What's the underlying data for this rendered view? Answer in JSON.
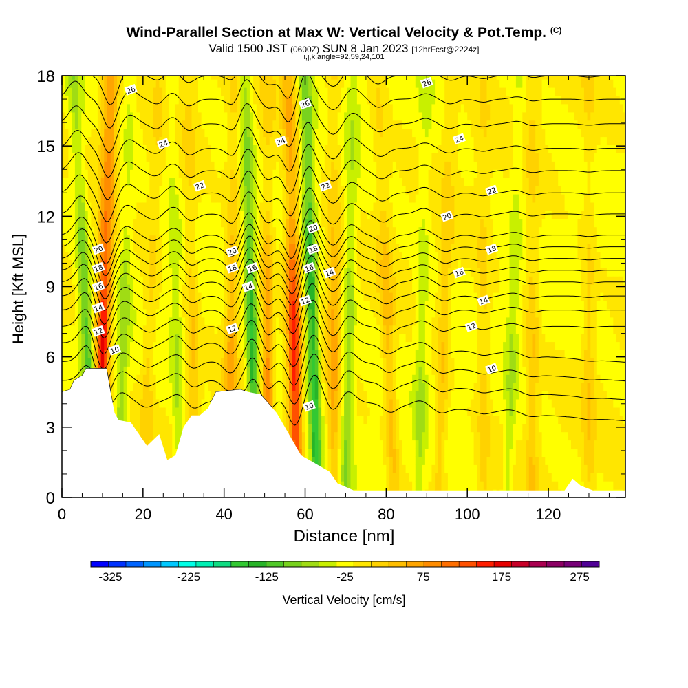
{
  "title": {
    "main": "Wind-Parallel Section at Max W: Vertical Velocity & Pot.Temp.",
    "copyright": "(C)",
    "valid_prefix": "Valid 1500 JST",
    "valid_utc": "(0600Z)",
    "valid_date": "SUN 8 Jan 2023",
    "forecast": "[12hrFcst@2224z]",
    "indices": "i,j,k,angle=92,59,24,101"
  },
  "chart_data": {
    "type": "heatmap",
    "xlabel": "Distance [nm]",
    "ylabel": "Height [Kft MSL]",
    "xlim": [
      0,
      139
    ],
    "ylim": [
      0,
      18
    ],
    "x_ticks": [
      0,
      20,
      40,
      60,
      80,
      100,
      120
    ],
    "y_ticks": [
      0,
      3,
      6,
      9,
      12,
      15,
      18
    ],
    "field": "Vertical Velocity",
    "colorbar": {
      "label": "Vertical Velocity [cm/s]",
      "range": [
        -350,
        300
      ],
      "tick_values": [
        -325,
        -225,
        -125,
        -25,
        75,
        175,
        275
      ],
      "tick_labels": [
        "-325",
        "-225",
        "-125",
        "-25",
        "75",
        "175",
        "275"
      ],
      "colors": [
        "#0000ff",
        "#0032ff",
        "#0064ff",
        "#0096ff",
        "#00c8ff",
        "#00ffe6",
        "#00f0b4",
        "#10dc82",
        "#32c832",
        "#28b428",
        "#50c828",
        "#78d21e",
        "#a0dc14",
        "#c8f000",
        "#ffff00",
        "#ffe600",
        "#ffd200",
        "#ffbe00",
        "#ffa500",
        "#ff8c00",
        "#ff6e00",
        "#ff5000",
        "#ff1e00",
        "#e60000",
        "#c80028",
        "#aa0050",
        "#8c0064",
        "#780078",
        "#500096"
      ]
    },
    "updraft_bands": [
      {
        "x_bottom": 9,
        "x_top": 12,
        "value": 200
      },
      {
        "x_bottom": 20,
        "x_top": 24,
        "value": 40
      },
      {
        "x_bottom": 33,
        "x_top": 31,
        "value": 50
      },
      {
        "x_bottom": 41,
        "x_top": 43,
        "value": 80
      },
      {
        "x_bottom": 51,
        "x_top": 51,
        "value": 110
      },
      {
        "x_bottom": 58,
        "x_top": 56,
        "value": 170
      },
      {
        "x_bottom": 67,
        "x_top": 67,
        "value": 75
      },
      {
        "x_bottom": 82,
        "x_top": 78,
        "value": 60
      },
      {
        "x_bottom": 93,
        "x_top": 96,
        "value": 50
      },
      {
        "x_bottom": 104,
        "x_top": 104,
        "value": 40
      },
      {
        "x_bottom": 116,
        "x_top": 116,
        "value": 50
      },
      {
        "x_bottom": 130,
        "x_top": 130,
        "value": 40
      }
    ],
    "downdraft_bands": [
      {
        "x_bottom": 8,
        "x_top": 3,
        "value": -100
      },
      {
        "x_bottom": 14,
        "x_top": 17,
        "value": -50
      },
      {
        "x_bottom": 29,
        "x_top": 27,
        "value": -40
      },
      {
        "x_bottom": 48,
        "x_top": 45,
        "value": -130
      },
      {
        "x_bottom": 53,
        "x_top": 51,
        "value": -40
      },
      {
        "x_bottom": 63,
        "x_top": 60,
        "value": -150
      },
      {
        "x_bottom": 70,
        "x_top": 72,
        "value": -60
      },
      {
        "x_bottom": 88,
        "x_top": 90,
        "value": -40
      },
      {
        "x_bottom": 110,
        "x_top": 113,
        "value": -40
      }
    ],
    "terrain_profile": [
      [
        0,
        4.5
      ],
      [
        2,
        4.6
      ],
      [
        3,
        5.0
      ],
      [
        5,
        5.2
      ],
      [
        6,
        5.5
      ],
      [
        11,
        5.5
      ],
      [
        12,
        4.5
      ],
      [
        13,
        3.6
      ],
      [
        14,
        3.3
      ],
      [
        17,
        3.2
      ],
      [
        19,
        2.7
      ],
      [
        21,
        2.2
      ],
      [
        24,
        2.7
      ],
      [
        26,
        1.6
      ],
      [
        28,
        1.8
      ],
      [
        30,
        3.0
      ],
      [
        32,
        3.5
      ],
      [
        34,
        3.5
      ],
      [
        36,
        3.8
      ],
      [
        38,
        4.5
      ],
      [
        44,
        4.6
      ],
      [
        46,
        4.5
      ],
      [
        49,
        4.4
      ],
      [
        51,
        4.0
      ],
      [
        53,
        3.6
      ],
      [
        55,
        3.0
      ],
      [
        57,
        2.4
      ],
      [
        59,
        1.8
      ],
      [
        62,
        1.5
      ],
      [
        66,
        1.1
      ],
      [
        68,
        0.6
      ],
      [
        72,
        0.3
      ],
      [
        80,
        0.3
      ],
      [
        100,
        0.3
      ],
      [
        115,
        0.3
      ],
      [
        124,
        0.3
      ],
      [
        126,
        0.8
      ],
      [
        128,
        0.5
      ],
      [
        131,
        0.3
      ],
      [
        139,
        0.3
      ]
    ],
    "contours": {
      "name": "Pot.Temp.",
      "levels": [
        10,
        12,
        14,
        16,
        18,
        20,
        22,
        24,
        26
      ],
      "labels": [
        {
          "text": "26",
          "x": 17,
          "y": 17.4
        },
        {
          "text": "26",
          "x": 60,
          "y": 16.8
        },
        {
          "text": "26",
          "x": 90,
          "y": 17.7
        },
        {
          "text": "24",
          "x": 25,
          "y": 15.1
        },
        {
          "text": "24",
          "x": 54,
          "y": 15.2
        },
        {
          "text": "24",
          "x": 98,
          "y": 15.3
        },
        {
          "text": "22",
          "x": 34,
          "y": 13.3
        },
        {
          "text": "22",
          "x": 65,
          "y": 13.3
        },
        {
          "text": "22",
          "x": 106,
          "y": 13.1
        },
        {
          "text": "20",
          "x": 9,
          "y": 10.6
        },
        {
          "text": "20",
          "x": 42,
          "y": 10.5
        },
        {
          "text": "20",
          "x": 62,
          "y": 11.5
        },
        {
          "text": "20",
          "x": 95,
          "y": 12.0
        },
        {
          "text": "18",
          "x": 9,
          "y": 9.8
        },
        {
          "text": "18",
          "x": 42,
          "y": 9.8
        },
        {
          "text": "18",
          "x": 62,
          "y": 10.6
        },
        {
          "text": "18",
          "x": 106,
          "y": 10.6
        },
        {
          "text": "16",
          "x": 9,
          "y": 9.0
        },
        {
          "text": "16",
          "x": 47,
          "y": 9.8
        },
        {
          "text": "16",
          "x": 61,
          "y": 9.8
        },
        {
          "text": "16",
          "x": 98,
          "y": 9.6
        },
        {
          "text": "14",
          "x": 9,
          "y": 8.1
        },
        {
          "text": "14",
          "x": 46,
          "y": 9.0
        },
        {
          "text": "14",
          "x": 66,
          "y": 9.6
        },
        {
          "text": "14",
          "x": 104,
          "y": 8.4
        },
        {
          "text": "12",
          "x": 9,
          "y": 7.1
        },
        {
          "text": "12",
          "x": 42,
          "y": 7.2
        },
        {
          "text": "12",
          "x": 60,
          "y": 8.4
        },
        {
          "text": "12",
          "x": 101,
          "y": 7.3
        },
        {
          "text": "10",
          "x": 13,
          "y": 6.3
        },
        {
          "text": "10",
          "x": 61,
          "y": 3.9
        },
        {
          "text": "10",
          "x": 106,
          "y": 5.5
        }
      ]
    },
    "grid": false,
    "legend": "bottom"
  }
}
